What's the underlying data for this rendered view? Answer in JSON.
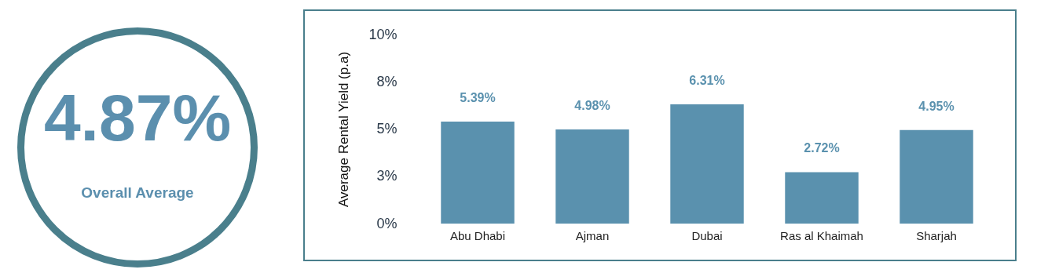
{
  "chart_data": [
    {
      "type": "other",
      "title": "4.87%",
      "annotations": [
        "Overall Average"
      ]
    },
    {
      "type": "bar",
      "ylabel": "Average Rental Yield (p.a)",
      "categories": [
        "Abu Dhabi",
        "Ajman",
        "Dubai",
        "Ras al Khaimah",
        "Sharjah"
      ],
      "values": [
        5.39,
        4.98,
        6.31,
        2.72,
        4.95
      ],
      "value_labels": [
        "5.39%",
        "4.98%",
        "6.31%",
        "2.72%",
        "4.95%"
      ],
      "color": "#5a91ae",
      "ylim": [
        0,
        10
      ],
      "yticks": [
        {
          "value": 0,
          "label": "0%"
        },
        {
          "value": 2.5,
          "label": "3%"
        },
        {
          "value": 5,
          "label": "5%"
        },
        {
          "value": 7.5,
          "label": "8%"
        },
        {
          "value": 10,
          "label": "10%"
        }
      ],
      "grid": false
    }
  ]
}
